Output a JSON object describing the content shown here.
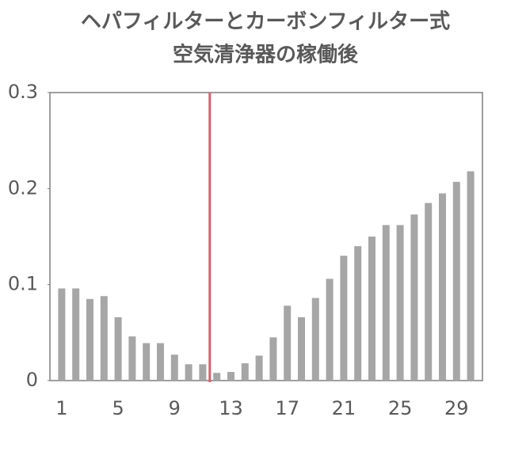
{
  "chart_data": {
    "type": "bar",
    "title": [
      "ヘパフィルターとカーボンフィルター式",
      "空気清浄器の稼働後"
    ],
    "categories": [
      "1",
      null,
      null,
      null,
      "5",
      null,
      null,
      null,
      "9",
      null,
      null,
      null,
      "13",
      null,
      null,
      null,
      "17",
      null,
      null,
      null,
      "21",
      null,
      null,
      null,
      "25",
      null,
      null,
      null,
      "29",
      null
    ],
    "values": [
      0.096,
      0.096,
      0.085,
      0.088,
      0.066,
      0.046,
      0.039,
      0.039,
      0.027,
      0.017,
      0.017,
      0.008,
      0.009,
      0.018,
      0.026,
      0.045,
      0.078,
      0.066,
      0.086,
      0.106,
      0.13,
      0.14,
      0.15,
      0.162,
      0.162,
      0.173,
      0.185,
      0.195,
      0.207,
      0.218
    ],
    "color": "#a6a6a6",
    "ylim": [
      0,
      0.3
    ],
    "yticks": [
      0,
      0.1,
      0.2,
      0.3
    ],
    "vline": {
      "x": 11.5,
      "color": "#d9606b"
    }
  }
}
